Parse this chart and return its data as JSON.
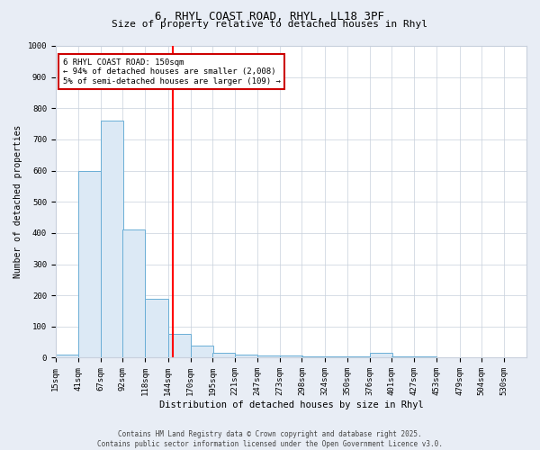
{
  "title_line1": "6, RHYL COAST ROAD, RHYL, LL18 3PF",
  "title_line2": "Size of property relative to detached houses in Rhyl",
  "xlabel": "Distribution of detached houses by size in Rhyl",
  "ylabel": "Number of detached properties",
  "bin_labels": [
    "15sqm",
    "41sqm",
    "67sqm",
    "92sqm",
    "118sqm",
    "144sqm",
    "170sqm",
    "195sqm",
    "221sqm",
    "247sqm",
    "273sqm",
    "298sqm",
    "324sqm",
    "350sqm",
    "376sqm",
    "401sqm",
    "427sqm",
    "453sqm",
    "479sqm",
    "504sqm",
    "530sqm"
  ],
  "bin_edges": [
    15,
    41,
    67,
    92,
    118,
    144,
    170,
    195,
    221,
    247,
    273,
    298,
    324,
    350,
    376,
    401,
    427,
    453,
    479,
    504,
    530
  ],
  "bar_heights": [
    10,
    600,
    760,
    410,
    190,
    75,
    40,
    15,
    10,
    8,
    6,
    5,
    5,
    4,
    15,
    4,
    3,
    2,
    2,
    2,
    2
  ],
  "bar_color": "#dce9f5",
  "bar_edge_color": "#6aaed6",
  "red_line_x": 150,
  "ylim": [
    0,
    1000
  ],
  "yticks": [
    0,
    100,
    200,
    300,
    400,
    500,
    600,
    700,
    800,
    900,
    1000
  ],
  "annotation_text": "6 RHYL COAST ROAD: 150sqm\n← 94% of detached houses are smaller (2,008)\n5% of semi-detached houses are larger (109) →",
  "annotation_box_facecolor": "#ffffff",
  "annotation_box_edgecolor": "#cc0000",
  "footer_line1": "Contains HM Land Registry data © Crown copyright and database right 2025.",
  "footer_line2": "Contains public sector information licensed under the Open Government Licence v3.0.",
  "fig_facecolor": "#e8edf5",
  "ax_facecolor": "#ffffff",
  "grid_color": "#c8d0dc",
  "title1_fontsize": 9,
  "title2_fontsize": 8,
  "xlabel_fontsize": 7.5,
  "ylabel_fontsize": 7,
  "tick_fontsize": 6.5,
  "footer_fontsize": 5.5,
  "annot_fontsize": 6.5
}
